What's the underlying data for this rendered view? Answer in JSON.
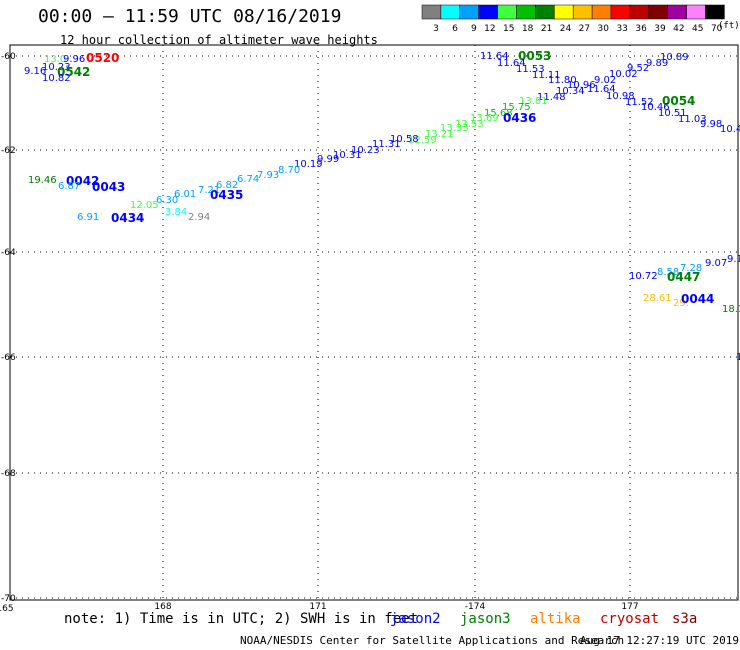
{
  "header": {
    "title": "00:00 – 11:59 UTC 08/16/2019",
    "subtitle": "12 hour collection of altimeter wave heights"
  },
  "scale": {
    "values": [
      "3",
      "6",
      "9",
      "12",
      "15",
      "18",
      "21",
      "24",
      "27",
      "30",
      "33",
      "36",
      "39",
      "42",
      "45",
      "70"
    ],
    "colors": [
      "#808080",
      "#00ffff",
      "#00a0ff",
      "#0000ff",
      "#40ff40",
      "#00c000",
      "#008000",
      "#ffff00",
      "#ffc000",
      "#ff8000",
      "#ff0000",
      "#c00000",
      "#800000",
      "#a000a0",
      "#ff80ff",
      "#000000"
    ],
    "unit": "(ft)"
  },
  "axes": {
    "lat_labels": [
      "-60",
      "-62",
      "-64",
      "-66",
      "-68",
      "-70"
    ],
    "lon_labels": [
      "165",
      "168",
      "171",
      "-174",
      "177"
    ]
  },
  "labels": [
    {
      "t": "13.0",
      "c": "#40ff40"
    },
    {
      "t": "9.96",
      "c": "#0000ff"
    },
    {
      "t": "0520",
      "c": "#ff0000",
      "b": true
    },
    {
      "t": "9.16",
      "c": "#0000ff"
    },
    {
      "t": "10.23",
      "c": "#0000ff"
    },
    {
      "t": "0542",
      "c": "#008000",
      "b": true
    },
    {
      "t": "10.82",
      "c": "#0000ff"
    },
    {
      "t": "11.64",
      "c": "#0000ff"
    },
    {
      "t": "0053",
      "c": "#008000",
      "b": true
    },
    {
      "t": "11.64",
      "c": "#0000ff"
    },
    {
      "t": "11.53",
      "c": "#0000ff"
    },
    {
      "t": "11.11",
      "c": "#0000ff"
    },
    {
      "t": "11.80",
      "c": "#0000ff"
    },
    {
      "t": "10.96",
      "c": "#0000ff"
    },
    {
      "t": "9.02",
      "c": "#0000ff"
    },
    {
      "t": "10.02",
      "c": "#0000ff"
    },
    {
      "t": "9.52",
      "c": "#0000ff"
    },
    {
      "t": "9.89",
      "c": "#0000ff"
    },
    {
      "t": "10.89",
      "c": "#0000ff"
    },
    {
      "t": "10.34",
      "c": "#0000ff"
    },
    {
      "t": "11.64",
      "c": "#0000ff"
    },
    {
      "t": "11.48",
      "c": "#0000ff"
    },
    {
      "t": "10.98",
      "c": "#0000ff"
    },
    {
      "t": "11.52",
      "c": "#0000ff"
    },
    {
      "t": "0054",
      "c": "#008000",
      "b": true
    },
    {
      "t": "10.46",
      "c": "#0000ff"
    },
    {
      "t": "10.51",
      "c": "#0000ff"
    },
    {
      "t": "11.03",
      "c": "#0000ff"
    },
    {
      "t": "9.98",
      "c": "#0000ff"
    },
    {
      "t": "10.4",
      "c": "#0000ff"
    },
    {
      "t": "13.81",
      "c": "#40ff40"
    },
    {
      "t": "15.75",
      "c": "#00c000"
    },
    {
      "t": "15.68",
      "c": "#00c000"
    },
    {
      "t": "0436",
      "c": "#0000ff",
      "b": true
    },
    {
      "t": "13.69",
      "c": "#40ff40"
    },
    {
      "t": "13.53",
      "c": "#40ff40"
    },
    {
      "t": "13.33",
      "c": "#40ff40"
    },
    {
      "t": "13.21",
      "c": "#40ff40"
    },
    {
      "t": "12.59",
      "c": "#40ff40"
    },
    {
      "t": "10.58",
      "c": "#0000ff"
    },
    {
      "t": "11.31",
      "c": "#0000ff"
    },
    {
      "t": "10.23",
      "c": "#0000ff"
    },
    {
      "t": "10.31",
      "c": "#0000ff"
    },
    {
      "t": "9.99",
      "c": "#0000ff"
    },
    {
      "t": "10.19",
      "c": "#0000ff"
    },
    {
      "t": "8.70",
      "c": "#00a0ff"
    },
    {
      "t": "7.93",
      "c": "#00a0ff"
    },
    {
      "t": "6.74",
      "c": "#00a0ff"
    },
    {
      "t": "6.82",
      "c": "#00a0ff"
    },
    {
      "t": "7.21",
      "c": "#00a0ff"
    },
    {
      "t": "0435",
      "c": "#0000ff",
      "b": true
    },
    {
      "t": "6.01",
      "c": "#00a0ff"
    },
    {
      "t": "6.30",
      "c": "#00a0ff"
    },
    {
      "t": "12.05",
      "c": "#40ff40"
    },
    {
      "t": "3.84",
      "c": "#00ffff"
    },
    {
      "t": "2.94",
      "c": "#808080"
    },
    {
      "t": "19.46",
      "c": "#008000"
    },
    {
      "t": "0042",
      "c": "#0000ff",
      "b": true
    },
    {
      "t": "6.87",
      "c": "#00a0ff"
    },
    {
      "t": "0043",
      "c": "#0000ff",
      "b": true
    },
    {
      "t": "6.91",
      "c": "#00a0ff"
    },
    {
      "t": "0434",
      "c": "#0000ff",
      "b": true
    },
    {
      "t": "9.07",
      "c": "#0000ff"
    },
    {
      "t": "9.1",
      "c": "#0000ff"
    },
    {
      "t": "7.28",
      "c": "#00a0ff"
    },
    {
      "t": "8.58",
      "c": "#00a0ff"
    },
    {
      "t": "10.72",
      "c": "#0000ff"
    },
    {
      "t": "0447",
      "c": "#008000",
      "b": true
    },
    {
      "t": "28.61",
      "c": "#ffc000"
    },
    {
      "t": "29.",
      "c": "#ffc000"
    },
    {
      "t": "0044",
      "c": "#0000ff",
      "b": true
    },
    {
      "t": "18.1",
      "c": "#008000"
    },
    {
      "t": "1",
      "c": "#0000ff"
    }
  ],
  "footer": {
    "note": "note: 1) Time is in UTC; 2) SWH is in feet",
    "missions": [
      {
        "name": "jason2",
        "color": "#0000ff"
      },
      {
        "name": "jason3",
        "color": "#008000"
      },
      {
        "name": "altika",
        "color": "#ff8000"
      },
      {
        "name": "cryosat",
        "color": "#c00000"
      },
      {
        "name": "s3a",
        "color": "#800000"
      }
    ],
    "credit": "NOAA/NESDIS Center for Satellite Applications and Research",
    "timestamp": "Aug 17 12:27:19 UTC 2019"
  }
}
